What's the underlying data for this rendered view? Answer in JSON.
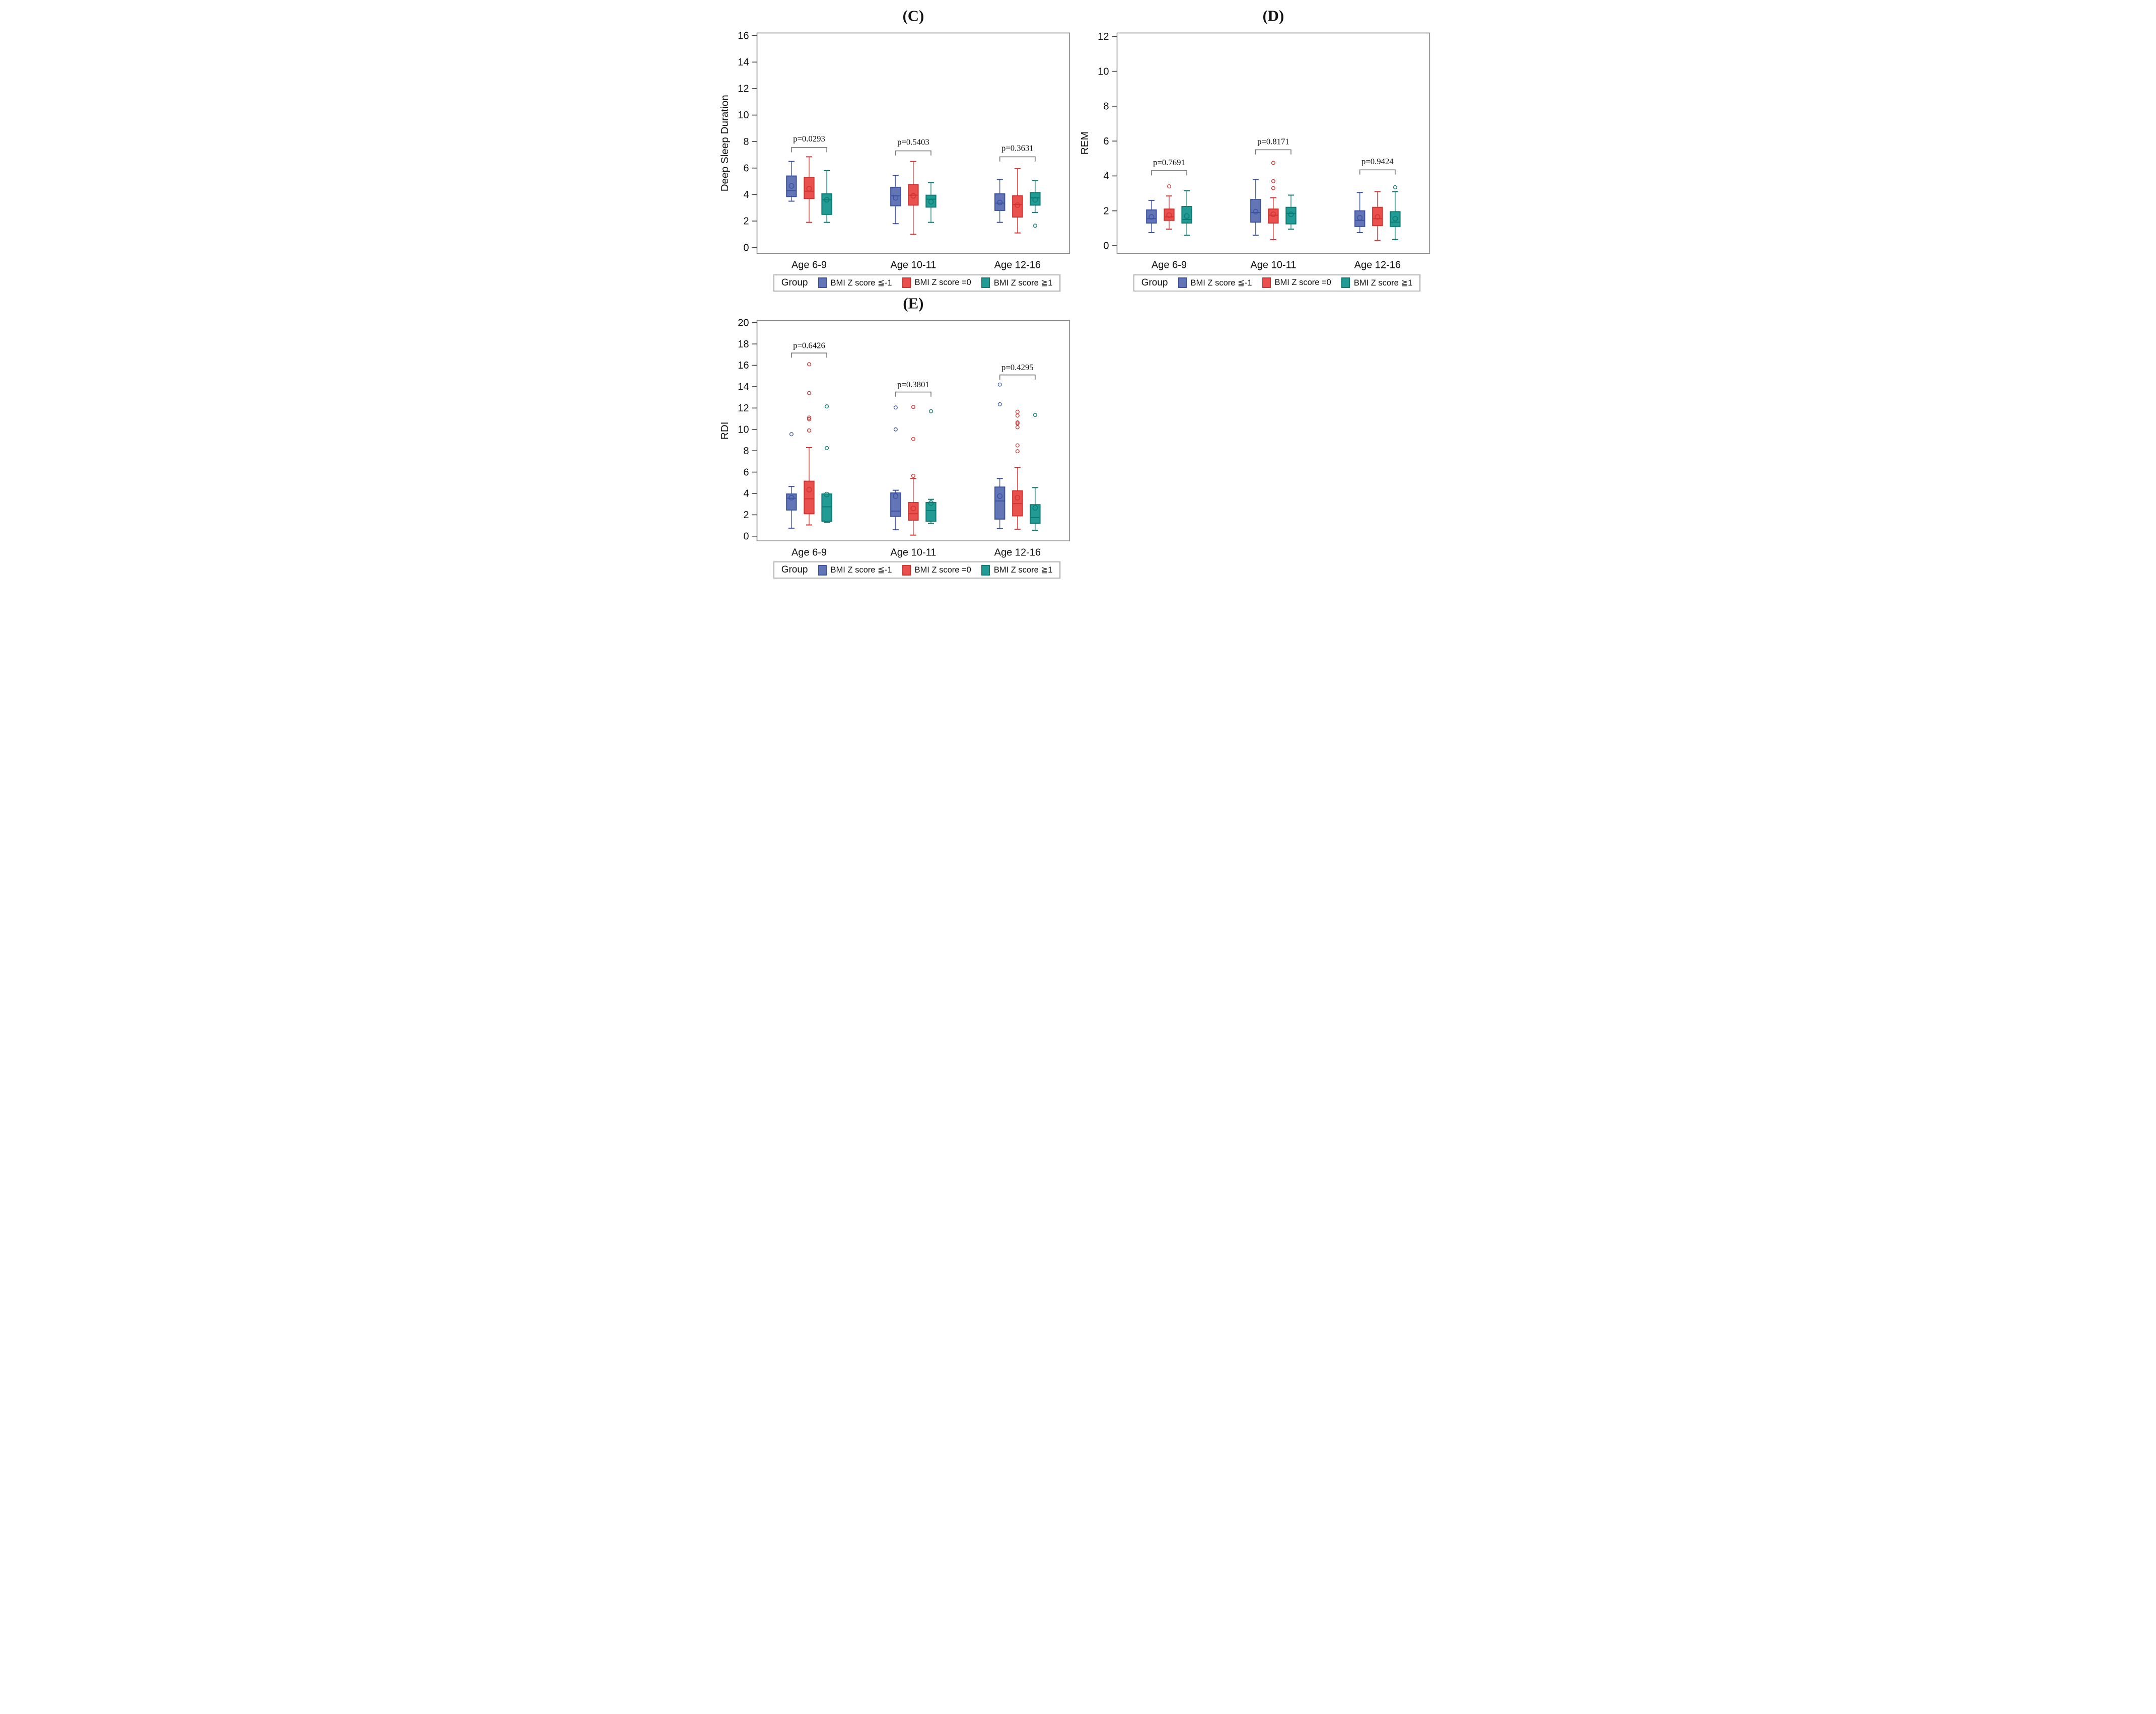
{
  "colors": {
    "blue": {
      "fill": "#6375b5",
      "stroke": "#3a53a3"
    },
    "red": {
      "fill": "#e9514f",
      "stroke": "#d23330"
    },
    "teal": {
      "fill": "#219b93",
      "stroke": "#0b7b74"
    },
    "frame": "#8b8b8b",
    "tick": "#444444",
    "bracket": "#7a7a7a",
    "text": "#111111"
  },
  "legend": {
    "title": "Group",
    "items": [
      {
        "label": "BMI Z score ≦-1",
        "color": "blue"
      },
      {
        "label": "BMI Z score =0",
        "color": "red"
      },
      {
        "label": "BMI Z score ≧1",
        "color": "teal"
      }
    ]
  },
  "chart_data": [
    {
      "id": "C",
      "type": "boxplot",
      "title": "(C)",
      "ylabel": "Deep Sleep Duration",
      "ylim": [
        0,
        16
      ],
      "ytick_step": 2,
      "grid": false,
      "legend_position": "bottom",
      "categories": [
        "Age 6-9",
        "Age 10-11",
        "Age 12-16"
      ],
      "series": [
        {
          "name": "BMI Z score ≦-1",
          "color": "blue",
          "boxes": [
            {
              "low": 3.5,
              "q1": 3.85,
              "med": 4.3,
              "q3": 5.4,
              "high": 6.5,
              "mean": 4.65,
              "outliers": []
            },
            {
              "low": 1.8,
              "q1": 3.15,
              "med": 3.9,
              "q3": 4.55,
              "high": 5.45,
              "mean": 3.75,
              "outliers": []
            },
            {
              "low": 1.9,
              "q1": 2.8,
              "med": 3.35,
              "q3": 4.05,
              "high": 5.15,
              "mean": 3.4,
              "outliers": []
            }
          ]
        },
        {
          "name": "BMI Z score =0",
          "color": "red",
          "boxes": [
            {
              "low": 1.9,
              "q1": 3.7,
              "med": 4.25,
              "q3": 5.3,
              "high": 6.85,
              "mean": 4.45,
              "outliers": []
            },
            {
              "low": 1.0,
              "q1": 3.2,
              "med": 3.95,
              "q3": 4.75,
              "high": 6.5,
              "mean": 3.9,
              "outliers": []
            },
            {
              "low": 1.1,
              "q1": 2.3,
              "med": 3.25,
              "q3": 3.9,
              "high": 5.95,
              "mean": 3.2,
              "outliers": []
            }
          ]
        },
        {
          "name": "BMI Z score ≧1",
          "color": "teal",
          "boxes": [
            {
              "low": 1.9,
              "q1": 2.5,
              "med": 3.6,
              "q3": 4.05,
              "high": 5.8,
              "mean": 3.6,
              "outliers": []
            },
            {
              "low": 1.9,
              "q1": 3.05,
              "med": 3.65,
              "q3": 3.95,
              "high": 4.9,
              "mean": 3.45,
              "outliers": []
            },
            {
              "low": 2.65,
              "q1": 3.2,
              "med": 3.75,
              "q3": 4.15,
              "high": 5.05,
              "mean": 3.6,
              "outliers": [
                1.65
              ]
            }
          ]
        }
      ],
      "pvalues": [
        {
          "label": "p=0.0293",
          "category": 0,
          "bar_y": 7.55,
          "text_y": 8.0
        },
        {
          "label": "p=0.5403",
          "category": 1,
          "bar_y": 7.3,
          "text_y": 7.75
        },
        {
          "label": "p=0.3631",
          "category": 2,
          "bar_y": 6.85,
          "text_y": 7.3
        }
      ]
    },
    {
      "id": "D",
      "type": "boxplot",
      "title": "(D)",
      "ylabel": "REM",
      "ylim": [
        0,
        12
      ],
      "ytick_step": 2,
      "grid": false,
      "legend_position": "bottom",
      "categories": [
        "Age 6-9",
        "Age 10-11",
        "Age 12-16"
      ],
      "series": [
        {
          "name": "BMI Z score ≦-1",
          "color": "blue",
          "boxes": [
            {
              "low": 0.75,
              "q1": 1.3,
              "med": 1.55,
              "q3": 2.05,
              "high": 2.6,
              "mean": 1.65,
              "outliers": []
            },
            {
              "low": 0.6,
              "q1": 1.35,
              "med": 1.9,
              "q3": 2.65,
              "high": 3.8,
              "mean": 1.95,
              "outliers": []
            },
            {
              "low": 0.75,
              "q1": 1.1,
              "med": 1.45,
              "q3": 2.0,
              "high": 3.05,
              "mean": 1.6,
              "outliers": []
            }
          ]
        },
        {
          "name": "BMI Z score =0",
          "color": "red",
          "boxes": [
            {
              "low": 0.95,
              "q1": 1.45,
              "med": 1.65,
              "q3": 2.1,
              "high": 2.85,
              "mean": 1.75,
              "outliers": [
                3.4
              ]
            },
            {
              "low": 0.35,
              "q1": 1.3,
              "med": 1.75,
              "q3": 2.1,
              "high": 2.75,
              "mean": 1.8,
              "outliers": [
                3.3,
                3.7,
                4.75
              ]
            },
            {
              "low": 0.3,
              "q1": 1.15,
              "med": 1.55,
              "q3": 2.2,
              "high": 3.1,
              "mean": 1.65,
              "outliers": []
            }
          ]
        },
        {
          "name": "BMI Z score ≧1",
          "color": "teal",
          "boxes": [
            {
              "low": 0.6,
              "q1": 1.3,
              "med": 1.5,
              "q3": 2.25,
              "high": 3.15,
              "mean": 1.7,
              "outliers": []
            },
            {
              "low": 0.95,
              "q1": 1.25,
              "med": 1.85,
              "q3": 2.2,
              "high": 2.9,
              "mean": 1.8,
              "outliers": []
            },
            {
              "low": 0.35,
              "q1": 1.1,
              "med": 1.35,
              "q3": 1.95,
              "high": 3.1,
              "mean": 1.55,
              "outliers": [
                3.35
              ]
            }
          ]
        }
      ],
      "pvalues": [
        {
          "label": "p=0.7691",
          "category": 0,
          "bar_y": 4.3,
          "text_y": 4.62
        },
        {
          "label": "p=0.8171",
          "category": 1,
          "bar_y": 5.5,
          "text_y": 5.82
        },
        {
          "label": "p=0.9424",
          "category": 2,
          "bar_y": 4.35,
          "text_y": 4.67
        }
      ]
    },
    {
      "id": "E",
      "type": "boxplot",
      "title": "(E)",
      "ylabel": "RDI",
      "ylim": [
        0,
        20
      ],
      "ytick_step": 2,
      "grid": false,
      "legend_position": "bottom",
      "categories": [
        "Age 6-9",
        "Age 10-11",
        "Age 12-16"
      ],
      "series": [
        {
          "name": "BMI Z score ≦-1",
          "color": "blue",
          "boxes": [
            {
              "low": 0.75,
              "q1": 2.45,
              "med": 3.55,
              "q3": 3.95,
              "high": 4.65,
              "mean": 3.6,
              "outliers": [
                9.55
              ]
            },
            {
              "low": 0.6,
              "q1": 1.85,
              "med": 2.35,
              "q3": 4.05,
              "high": 4.3,
              "mean": 3.75,
              "outliers": [
                10.0,
                12.05
              ]
            },
            {
              "low": 0.7,
              "q1": 1.6,
              "med": 3.3,
              "q3": 4.6,
              "high": 5.4,
              "mean": 3.75,
              "outliers": [
                12.35,
                14.2
              ]
            }
          ]
        },
        {
          "name": "BMI Z score =0",
          "color": "red",
          "boxes": [
            {
              "low": 1.05,
              "q1": 2.1,
              "med": 3.5,
              "q3": 5.15,
              "high": 8.3,
              "mean": 4.35,
              "outliers": [
                9.9,
                10.95,
                11.1,
                13.4,
                16.1
              ]
            },
            {
              "low": 0.1,
              "q1": 1.5,
              "med": 2.1,
              "q3": 3.15,
              "high": 5.4,
              "mean": 2.6,
              "outliers": [
                5.65,
                9.1,
                12.1
              ]
            },
            {
              "low": 0.65,
              "q1": 1.9,
              "med": 3.05,
              "q3": 4.25,
              "high": 6.45,
              "mean": 3.6,
              "outliers": [
                7.95,
                8.5,
                10.2,
                10.55,
                10.65,
                11.3,
                11.65
              ]
            }
          ]
        },
        {
          "name": "BMI Z score ≧1",
          "color": "teal",
          "boxes": [
            {
              "low": 1.3,
              "q1": 1.4,
              "med": 2.75,
              "q3": 3.95,
              "high": 3.95,
              "mean": 3.9,
              "outliers": [
                8.25,
                12.15
              ]
            },
            {
              "low": 1.2,
              "q1": 1.4,
              "med": 2.4,
              "q3": 3.15,
              "high": 3.45,
              "mean": 3.1,
              "outliers": [
                11.7
              ]
            },
            {
              "low": 0.55,
              "q1": 1.2,
              "med": 1.75,
              "q3": 2.95,
              "high": 4.55,
              "mean": 2.65,
              "outliers": [
                11.35
              ]
            }
          ]
        }
      ],
      "pvalues": [
        {
          "label": "p=0.6426",
          "category": 0,
          "bar_y": 17.15,
          "text_y": 17.6
        },
        {
          "label": "p=0.3801",
          "category": 1,
          "bar_y": 13.5,
          "text_y": 13.95
        },
        {
          "label": "p=0.4295",
          "category": 2,
          "bar_y": 15.1,
          "text_y": 15.55
        }
      ]
    }
  ]
}
